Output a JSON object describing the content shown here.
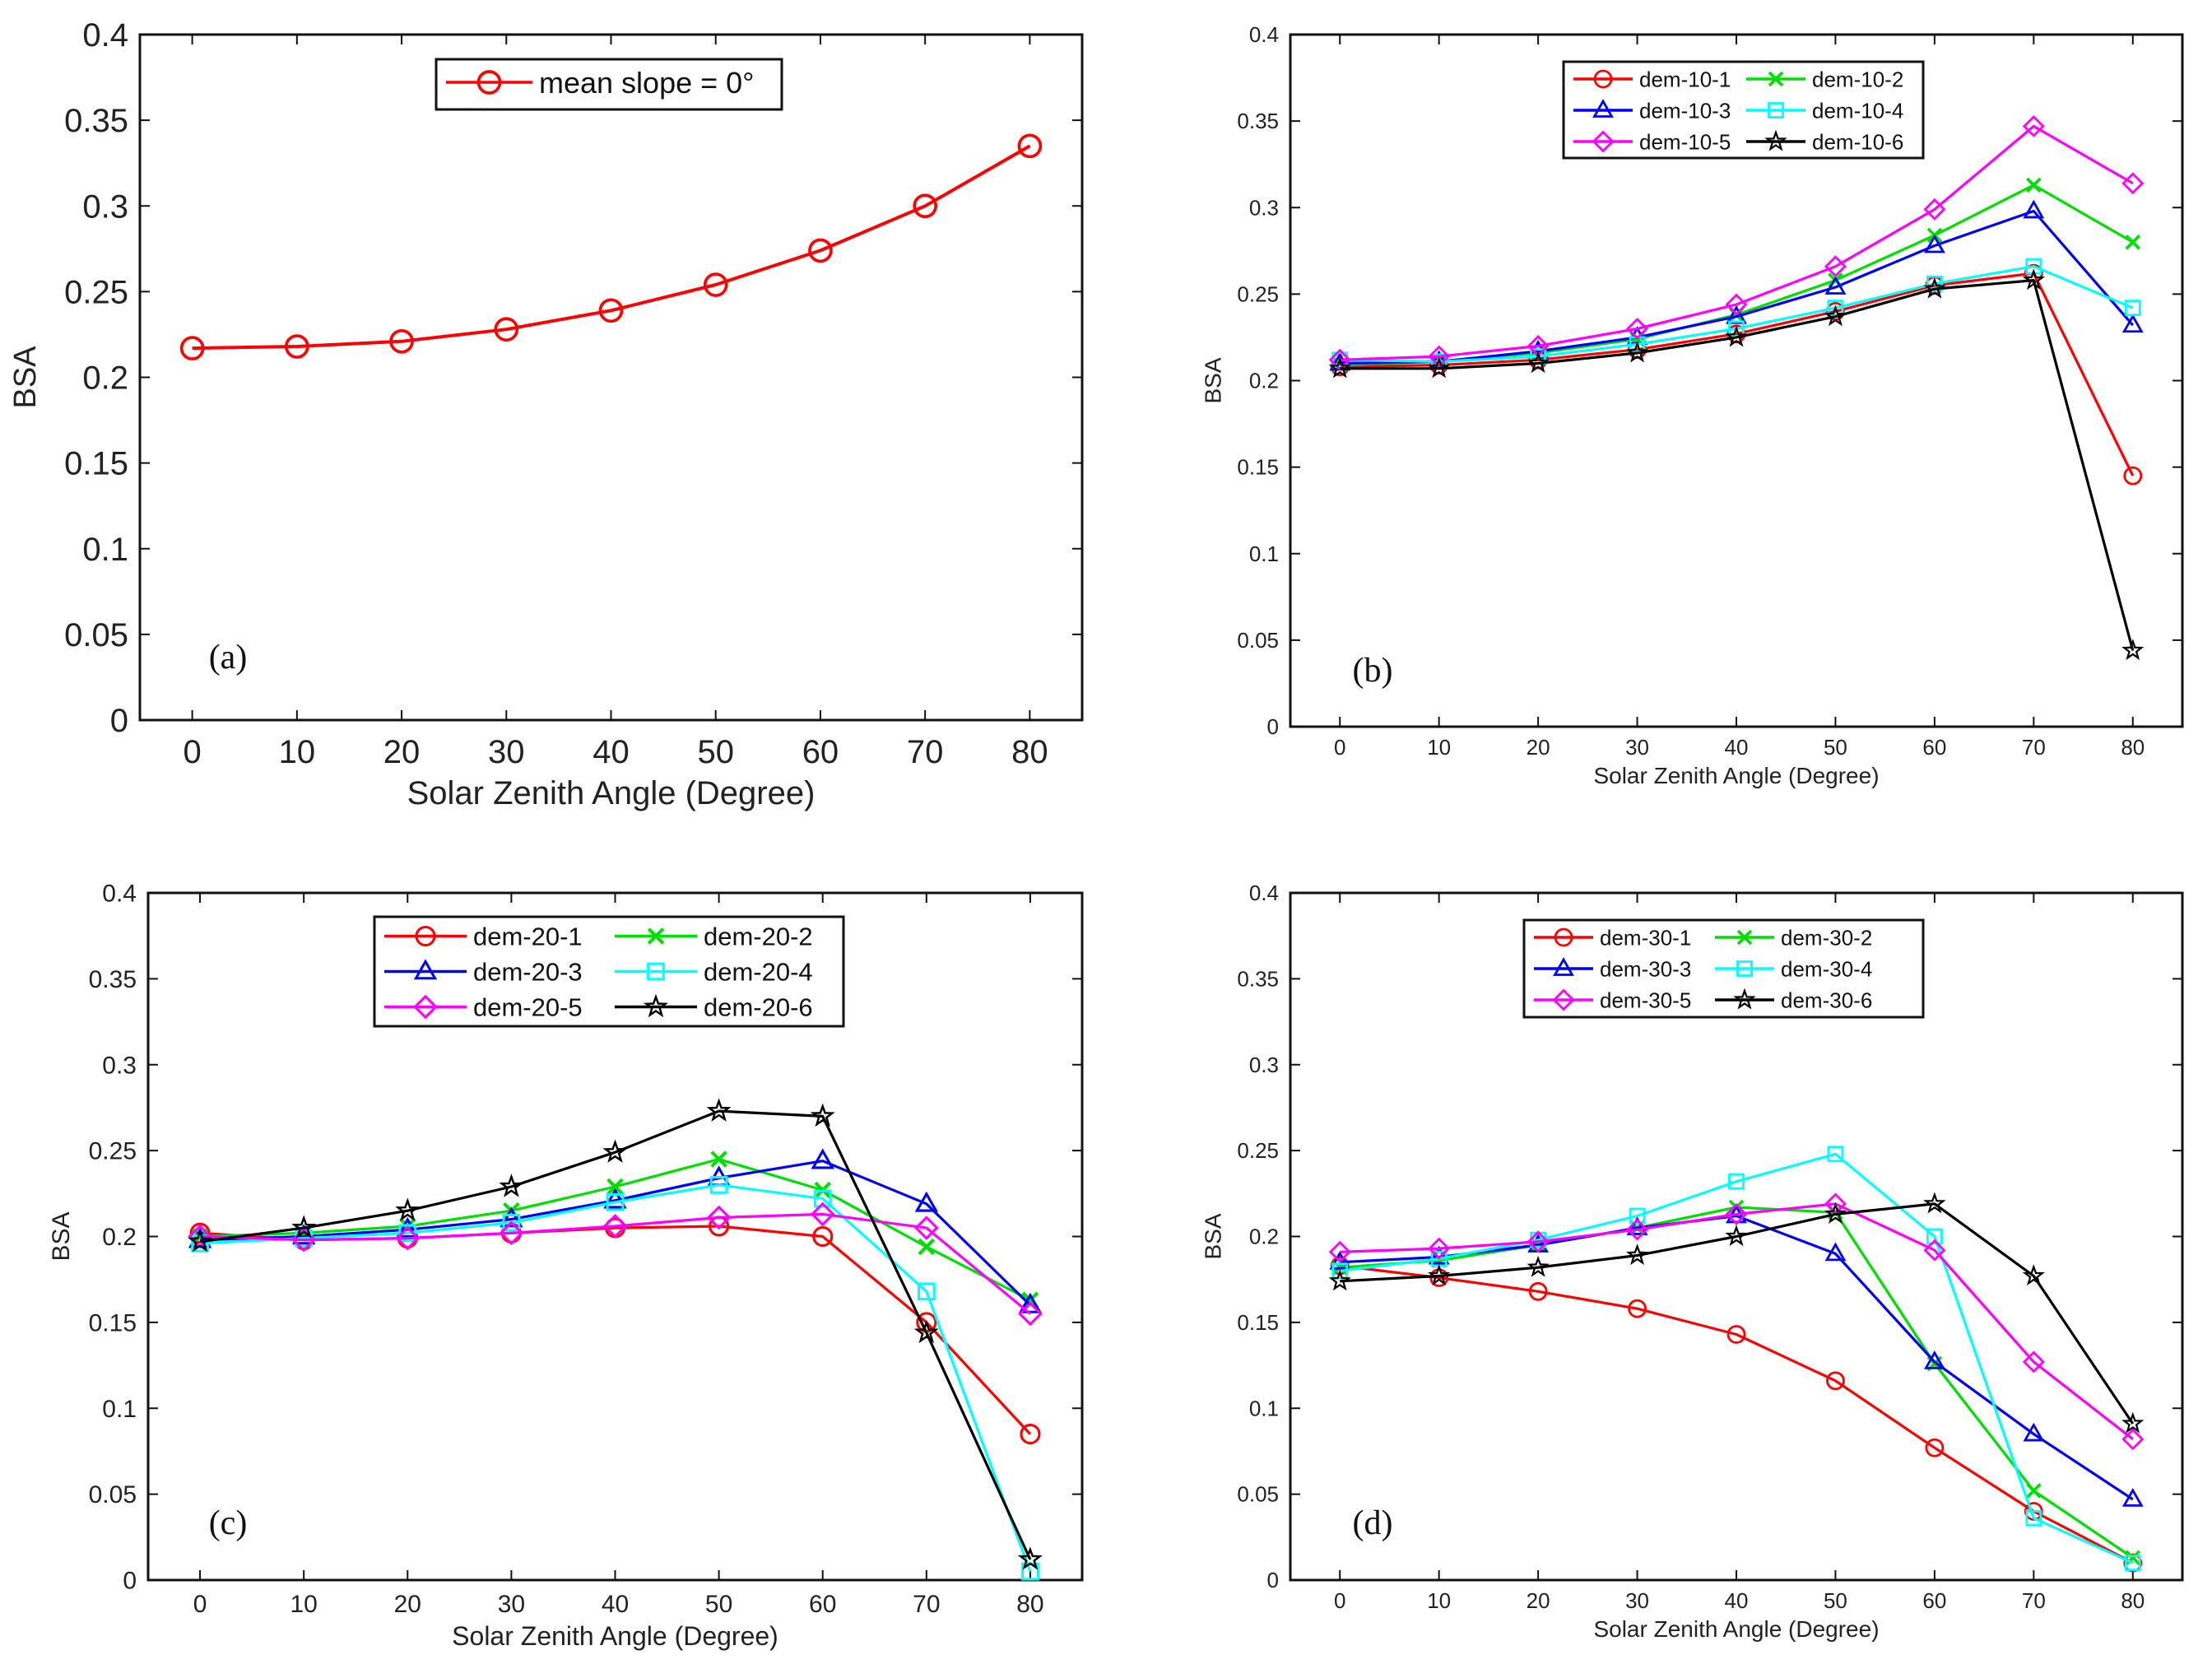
{
  "chart_data": [
    {
      "type": "line",
      "panel_label": "(a)",
      "xlabel": "Solar Zenith Angle (Degree)",
      "ylabel": "BSA",
      "x": [
        0,
        10,
        20,
        30,
        40,
        50,
        60,
        70,
        80
      ],
      "xlim": [
        -5,
        85
      ],
      "ylim": [
        0,
        0.4
      ],
      "xticks": [
        "0",
        "10",
        "20",
        "30",
        "40",
        "50",
        "60",
        "70",
        "80"
      ],
      "yticks": [
        "0",
        "0.05",
        "0.1",
        "0.15",
        "0.2",
        "0.25",
        "0.3",
        "0.35",
        "0.4"
      ],
      "legend_position": "top-center",
      "legend_columns": 1,
      "series": [
        {
          "name": "mean slope = 0°",
          "color": "#ff0000",
          "marker": "circle",
          "values": [
            0.217,
            0.218,
            0.221,
            0.228,
            0.239,
            0.254,
            0.274,
            0.3,
            0.335
          ]
        }
      ]
    },
    {
      "type": "line",
      "panel_label": "(b)",
      "xlabel": "Solar Zenith Angle (Degree)",
      "ylabel": "BSA",
      "x": [
        0,
        10,
        20,
        30,
        40,
        50,
        60,
        70,
        80
      ],
      "xlim": [
        -5,
        85
      ],
      "ylim": [
        0,
        0.4
      ],
      "xticks": [
        "0",
        "10",
        "20",
        "30",
        "40",
        "50",
        "60",
        "70",
        "80"
      ],
      "yticks": [
        "0",
        "0.05",
        "0.1",
        "0.15",
        "0.2",
        "0.25",
        "0.3",
        "0.35",
        "0.4"
      ],
      "legend_position": "top-center",
      "legend_columns": 2,
      "series": [
        {
          "name": "dem-10-1",
          "color": "#ff0000",
          "marker": "circle",
          "values": [
            0.208,
            0.209,
            0.212,
            0.218,
            0.227,
            0.24,
            0.255,
            0.262,
            0.145
          ]
        },
        {
          "name": "dem-10-2",
          "color": "#00dd00",
          "marker": "x",
          "values": [
            0.209,
            0.211,
            0.216,
            0.224,
            0.238,
            0.258,
            0.284,
            0.313,
            0.28
          ]
        },
        {
          "name": "dem-10-3",
          "color": "#0000ff",
          "marker": "triangle",
          "values": [
            0.21,
            0.211,
            0.217,
            0.225,
            0.237,
            0.254,
            0.278,
            0.298,
            0.232
          ]
        },
        {
          "name": "dem-10-4",
          "color": "#00ffff",
          "marker": "square",
          "values": [
            0.212,
            0.211,
            0.214,
            0.221,
            0.23,
            0.242,
            0.256,
            0.266,
            0.242
          ]
        },
        {
          "name": "dem-10-5",
          "color": "#ff00ff",
          "marker": "diamond",
          "values": [
            0.212,
            0.214,
            0.22,
            0.23,
            0.244,
            0.266,
            0.299,
            0.347,
            0.314
          ]
        },
        {
          "name": "dem-10-6",
          "color": "#000000",
          "marker": "star",
          "values": [
            0.207,
            0.207,
            0.21,
            0.216,
            0.225,
            0.237,
            0.253,
            0.258,
            0.044
          ]
        }
      ]
    },
    {
      "type": "line",
      "panel_label": "(c)",
      "xlabel": "Solar Zenith Angle (Degree)",
      "ylabel": "BSA",
      "x": [
        0,
        10,
        20,
        30,
        40,
        50,
        60,
        70,
        80
      ],
      "xlim": [
        -5,
        85
      ],
      "ylim": [
        0,
        0.4
      ],
      "xticks": [
        "0",
        "10",
        "20",
        "30",
        "40",
        "50",
        "60",
        "70",
        "80"
      ],
      "yticks": [
        "0",
        "0.05",
        "0.1",
        "0.15",
        "0.2",
        "0.25",
        "0.3",
        "0.35",
        "0.4"
      ],
      "legend_position": "top-center",
      "legend_columns": 2,
      "series": [
        {
          "name": "dem-20-1",
          "color": "#ff0000",
          "marker": "circle",
          "values": [
            0.202,
            0.198,
            0.199,
            0.202,
            0.205,
            0.206,
            0.2,
            0.15,
            0.085
          ]
        },
        {
          "name": "dem-20-2",
          "color": "#00dd00",
          "marker": "x",
          "values": [
            0.2,
            0.202,
            0.206,
            0.215,
            0.229,
            0.245,
            0.227,
            0.194,
            0.163
          ]
        },
        {
          "name": "dem-20-3",
          "color": "#0000ff",
          "marker": "triangle",
          "values": [
            0.198,
            0.2,
            0.204,
            0.21,
            0.221,
            0.234,
            0.244,
            0.219,
            0.16
          ]
        },
        {
          "name": "dem-20-4",
          "color": "#00ffff",
          "marker": "square",
          "values": [
            0.196,
            0.199,
            0.202,
            0.208,
            0.22,
            0.23,
            0.222,
            0.168,
            0.005
          ]
        },
        {
          "name": "dem-20-5",
          "color": "#ff00ff",
          "marker": "diamond",
          "values": [
            0.2,
            0.198,
            0.199,
            0.202,
            0.206,
            0.211,
            0.213,
            0.205,
            0.155
          ]
        },
        {
          "name": "dem-20-6",
          "color": "#000000",
          "marker": "star",
          "values": [
            0.197,
            0.205,
            0.215,
            0.229,
            0.249,
            0.273,
            0.27,
            0.144,
            0.012
          ]
        }
      ]
    },
    {
      "type": "line",
      "panel_label": "(d)",
      "xlabel": "Solar Zenith Angle (Degree)",
      "ylabel": "BSA",
      "x": [
        0,
        10,
        20,
        30,
        40,
        50,
        60,
        70,
        80
      ],
      "xlim": [
        -5,
        85
      ],
      "ylim": [
        0,
        0.4
      ],
      "xticks": [
        "0",
        "10",
        "20",
        "30",
        "40",
        "50",
        "60",
        "70",
        "80"
      ],
      "yticks": [
        "0",
        "0.05",
        "0.1",
        "0.15",
        "0.2",
        "0.25",
        "0.3",
        "0.35",
        "0.4"
      ],
      "legend_position": "top-center",
      "legend_columns": 2,
      "series": [
        {
          "name": "dem-30-1",
          "color": "#ff0000",
          "marker": "circle",
          "values": [
            0.183,
            0.176,
            0.168,
            0.158,
            0.143,
            0.116,
            0.077,
            0.04,
            0.01
          ]
        },
        {
          "name": "dem-30-2",
          "color": "#00dd00",
          "marker": "x",
          "values": [
            0.182,
            0.186,
            0.195,
            0.205,
            0.217,
            0.214,
            0.126,
            0.052,
            0.013
          ]
        },
        {
          "name": "dem-30-3",
          "color": "#0000ff",
          "marker": "triangle",
          "values": [
            0.185,
            0.188,
            0.195,
            0.205,
            0.212,
            0.19,
            0.127,
            0.085,
            0.047
          ]
        },
        {
          "name": "dem-30-4",
          "color": "#00ffff",
          "marker": "square",
          "values": [
            0.18,
            0.187,
            0.198,
            0.212,
            0.232,
            0.248,
            0.2,
            0.036,
            0.01
          ]
        },
        {
          "name": "dem-30-5",
          "color": "#ff00ff",
          "marker": "diamond",
          "values": [
            0.191,
            0.193,
            0.197,
            0.204,
            0.213,
            0.219,
            0.192,
            0.127,
            0.082
          ]
        },
        {
          "name": "dem-30-6",
          "color": "#000000",
          "marker": "star",
          "values": [
            0.174,
            0.177,
            0.182,
            0.189,
            0.2,
            0.213,
            0.219,
            0.177,
            0.091
          ]
        }
      ]
    }
  ]
}
